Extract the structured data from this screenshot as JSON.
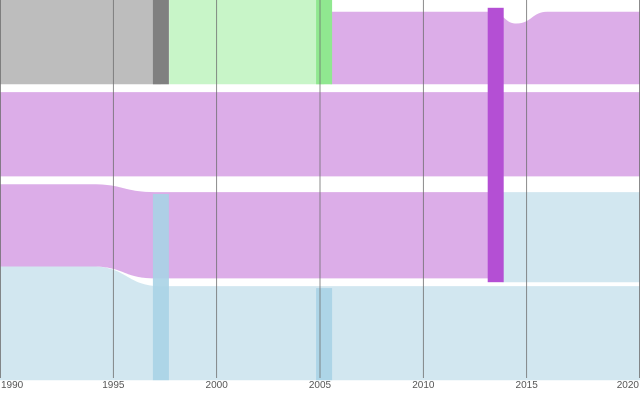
{
  "chart_data": {
    "type": "sankey",
    "x_axis": {
      "range": [
        1990,
        2020
      ],
      "ticks": [
        {
          "value": 1990,
          "label": "1990"
        },
        {
          "value": 1995,
          "label": "1995"
        },
        {
          "value": 2000,
          "label": "2000"
        },
        {
          "value": 2005,
          "label": "2005"
        },
        {
          "value": 2010,
          "label": "2010"
        },
        {
          "value": 2015,
          "label": "2015"
        },
        {
          "value": 2020,
          "label": "2020"
        }
      ]
    },
    "grid": true,
    "colors": {
      "gray": "#bdbdbd",
      "gray_node": "#808080",
      "green": "#c8f5c8",
      "green_node": "#90e890",
      "purple": "#d9a6e6",
      "purple_node": "#b44fd4",
      "blue": "#d2e7f0",
      "blue_node": "#a8d3e5",
      "grid": "#6e6e6e",
      "tick_text": "#555555"
    },
    "nodes": [
      {
        "id": "gray-1997",
        "color": "gray_node",
        "year": 1997.3,
        "range": [
          0,
          0.215
        ]
      },
      {
        "id": "green-2005",
        "color": "green_node",
        "year": 2005.2,
        "range": [
          0,
          0.215
        ]
      },
      {
        "id": "purple-2013",
        "color": "purple_node",
        "year": 2013.5,
        "range": [
          0.02,
          0.72
        ]
      },
      {
        "id": "blue-1997",
        "color": "blue_node",
        "year": 1997.3,
        "range": [
          0.495,
          0.97
        ]
      },
      {
        "id": "blue-2005",
        "color": "blue_node",
        "year": 2005.2,
        "range": [
          0.735,
          0.97
        ]
      }
    ],
    "flows": [
      {
        "id": "gray-band",
        "color": "gray",
        "points": [
          [
            1990,
            0,
            0.215
          ],
          [
            1997.3,
            0,
            0.215
          ]
        ]
      },
      {
        "id": "green-band",
        "color": "green",
        "points": [
          [
            1997.7,
            0,
            0.215
          ],
          [
            2005.2,
            0,
            0.215
          ]
        ]
      },
      {
        "id": "purple-top",
        "color": "purple",
        "points": [
          [
            2005.5,
            0.03,
            0.215
          ],
          [
            2013.3,
            0.03,
            0.215
          ],
          [
            2014.5,
            0.06,
            0.215
          ],
          [
            2016,
            0.03,
            0.215
          ],
          [
            2020,
            0.03,
            0.215
          ]
        ]
      },
      {
        "id": "purple-mid",
        "color": "purple",
        "points": [
          [
            1990,
            0.235,
            0.45
          ],
          [
            2013.3,
            0.235,
            0.45
          ],
          [
            2020,
            0.235,
            0.45
          ]
        ]
      },
      {
        "id": "purple-cross",
        "color": "purple",
        "points": [
          [
            1990,
            0.47,
            0.68
          ],
          [
            1994,
            0.47,
            0.68
          ],
          [
            1997,
            0.49,
            0.71
          ],
          [
            2013.3,
            0.49,
            0.71
          ]
        ]
      },
      {
        "id": "blue-lower",
        "color": "blue",
        "points": [
          [
            1990,
            0.68,
            0.97
          ],
          [
            1994,
            0.68,
            0.97
          ],
          [
            1997.3,
            0.73,
            0.97
          ],
          [
            2020,
            0.73,
            0.97
          ]
        ]
      },
      {
        "id": "blue-upper",
        "color": "blue",
        "points": [
          [
            2013.8,
            0.49,
            0.72
          ],
          [
            2020,
            0.49,
            0.72
          ]
        ]
      }
    ]
  }
}
